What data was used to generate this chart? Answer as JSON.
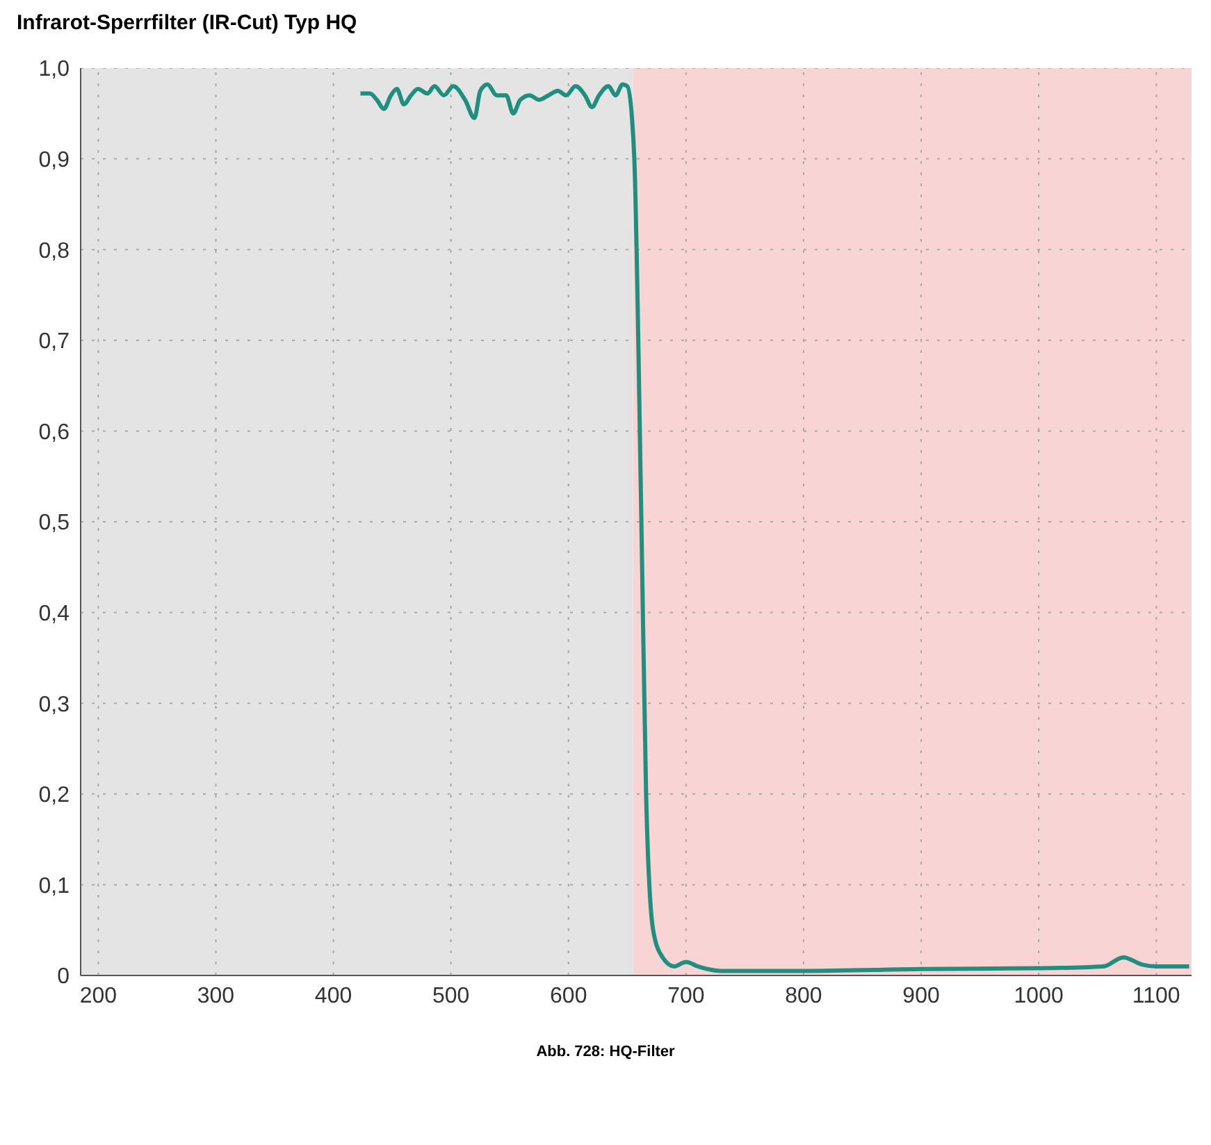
{
  "chart_data": {
    "type": "line",
    "title": "Infrarot-Sperrfilter (IR-Cut) Typ HQ",
    "annotations": [
      "Abb. 728: HQ-Filter"
    ],
    "x": [
      423,
      431,
      437,
      443,
      449,
      454,
      460,
      466,
      472,
      480,
      486,
      494,
      502,
      512,
      520,
      525,
      531,
      539,
      547,
      553,
      559,
      567,
      575,
      583,
      591,
      598,
      606,
      614,
      620,
      626,
      634,
      640,
      646,
      650,
      654,
      656,
      662,
      666,
      672,
      680,
      690,
      700,
      710,
      730,
      800,
      900,
      1000,
      1055,
      1072,
      1088,
      1100,
      1128
    ],
    "series": [
      {
        "color": "#1f8f80",
        "values": [
          0.972,
          0.972,
          0.965,
          0.955,
          0.97,
          0.977,
          0.96,
          0.97,
          0.977,
          0.972,
          0.98,
          0.97,
          0.98,
          0.965,
          0.945,
          0.975,
          0.982,
          0.97,
          0.97,
          0.95,
          0.965,
          0.97,
          0.965,
          0.97,
          0.975,
          0.97,
          0.98,
          0.97,
          0.957,
          0.97,
          0.98,
          0.97,
          0.982,
          0.98,
          0.945,
          0.9,
          0.5,
          0.2,
          0.05,
          0.02,
          0.01,
          0.015,
          0.01,
          0.005,
          0.005,
          0.007,
          0.008,
          0.01,
          0.02,
          0.012,
          0.01,
          0.01
        ]
      }
    ],
    "xlim": [
      185,
      1130
    ],
    "xticks": [
      200,
      300,
      400,
      500,
      600,
      700,
      800,
      900,
      1000,
      1100
    ],
    "ylim": [
      0,
      1
    ],
    "yticks": [
      0,
      {
        "value": 0.1,
        "label": "0,1"
      },
      {
        "value": 0.2,
        "label": "0,2"
      },
      {
        "value": 0.3,
        "label": "0,3"
      },
      {
        "value": 0.4,
        "label": "0,4"
      },
      {
        "value": 0.5,
        "label": "0,5"
      },
      {
        "value": 0.6,
        "label": "0,6"
      },
      {
        "value": 0.7,
        "label": "0,7"
      },
      {
        "value": 0.8,
        "label": "0,8"
      },
      {
        "value": 0.9,
        "label": "0,9"
      },
      {
        "value": 1,
        "label": "1,0"
      }
    ],
    "bands": [
      {
        "axis": "x",
        "from": 185,
        "to": 655,
        "color": "#e4e4e4"
      },
      {
        "axis": "x",
        "from": 655,
        "to": 1130,
        "color": "#f9d4d4"
      }
    ],
    "grid": true,
    "marker": "none",
    "line_style": "solid"
  }
}
